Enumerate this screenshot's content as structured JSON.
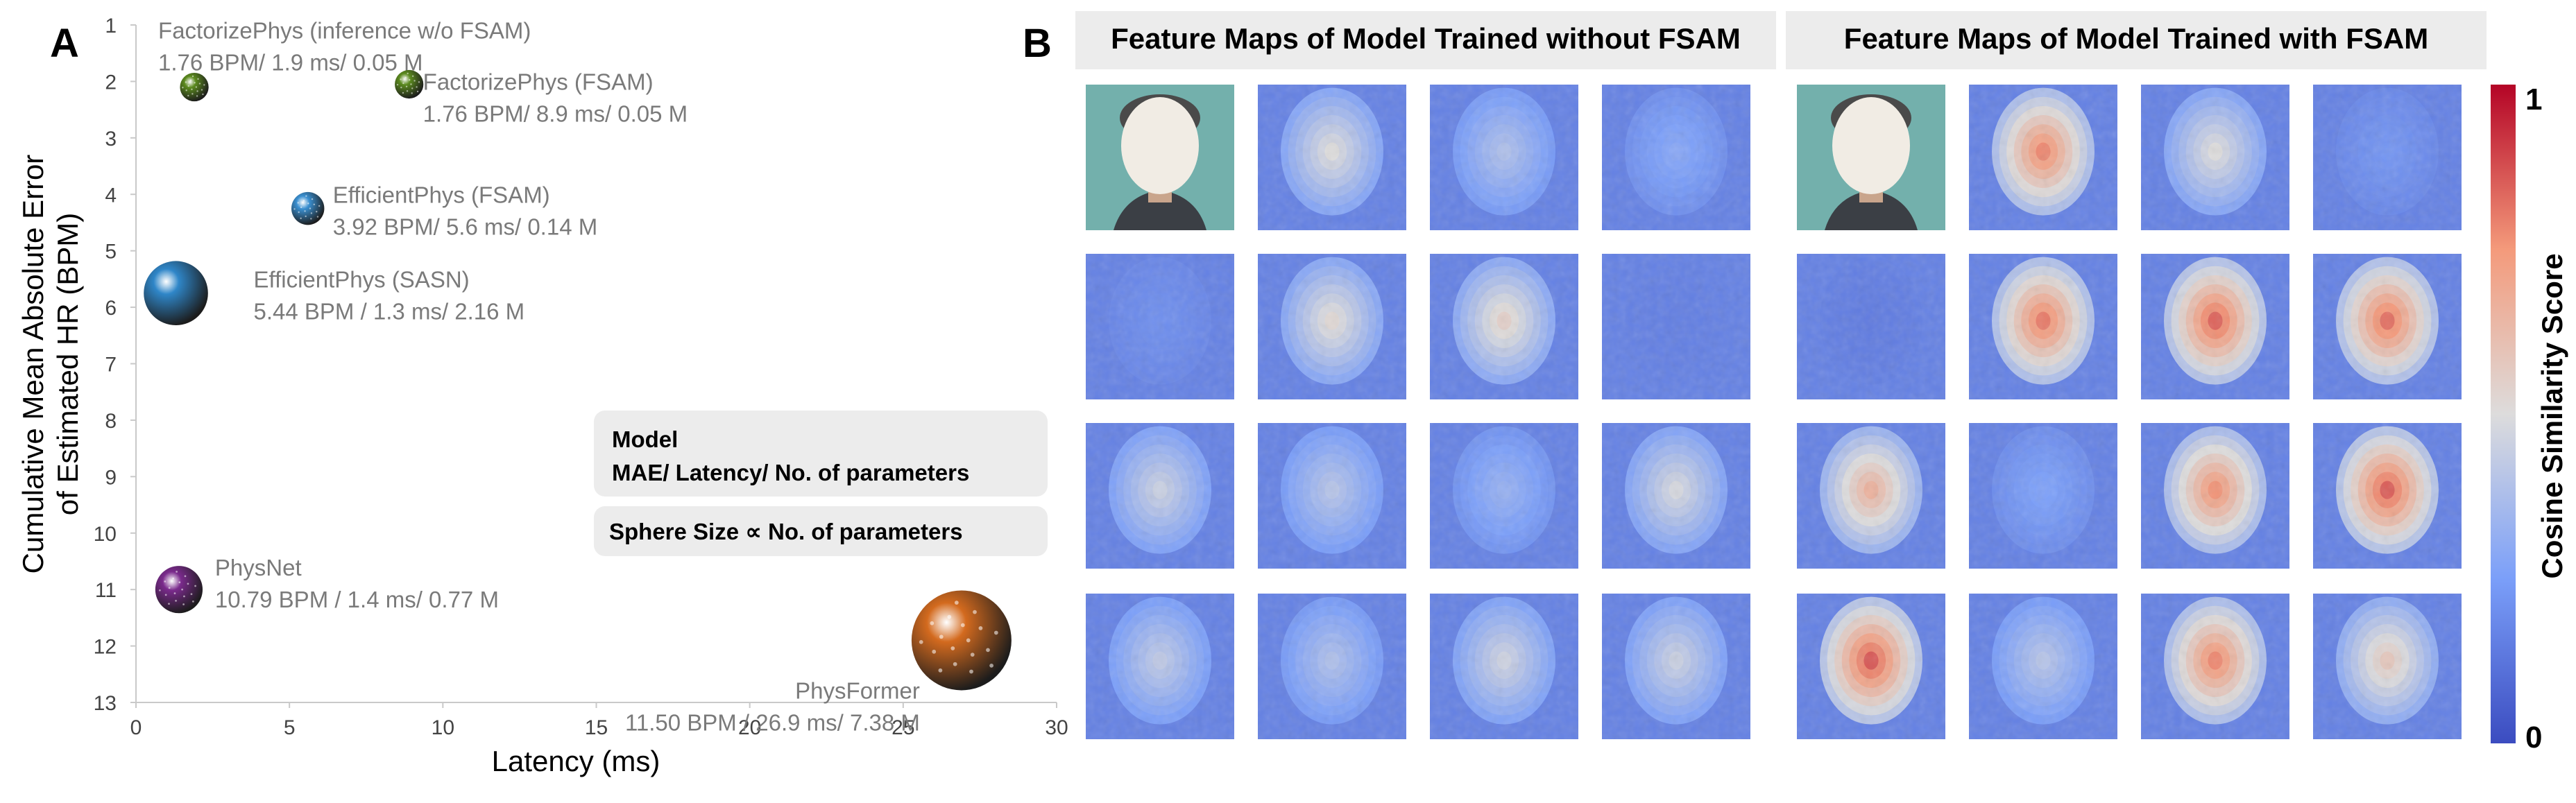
{
  "panels": {
    "a_letter": "A",
    "b_letter": "B"
  },
  "chart_data": [
    {
      "type": "scatter",
      "xlabel": "Latency (ms)",
      "ylabel_lines": [
        "Cumulative Mean Absolute Error",
        "of Estimated HR (BPM)"
      ],
      "xlim": [
        0,
        30
      ],
      "ylim": [
        1,
        13
      ],
      "y_inverted": true,
      "xticks": [
        0,
        5,
        10,
        15,
        20,
        25,
        30
      ],
      "yticks": [
        1,
        2,
        3,
        4,
        5,
        6,
        7,
        8,
        9,
        10,
        11,
        12,
        13
      ],
      "grid": false,
      "legend_box": {
        "line1": "Model",
        "line2": "MAE/ Latency/ No. of parameters",
        "line3": "Sphere Size ∝ No. of parameters"
      },
      "points": [
        {
          "name": "FactorizePhys (inference w/o FSAM)",
          "stats": "1.76 BPM/ 1.9 ms/ 0.05 M",
          "x": 1.9,
          "y": 2.1,
          "params_m": 0.05,
          "color": "#5b8a1e"
        },
        {
          "name": "FactorizePhys (FSAM)",
          "stats": "1.76 BPM/ 8.9 ms/ 0.05 M",
          "x": 8.9,
          "y": 2.05,
          "params_m": 0.05,
          "color": "#5b8a1e"
        },
        {
          "name": "EfficientPhys (FSAM)",
          "stats": "3.92 BPM/ 5.6 ms/ 0.14 M",
          "x": 5.6,
          "y": 4.25,
          "params_m": 0.14,
          "color": "#3a8fd0"
        },
        {
          "name": "EfficientPhys (SASN)",
          "stats": "5.44 BPM / 1.3 ms/ 2.16 M",
          "x": 1.3,
          "y": 5.75,
          "params_m": 2.16,
          "color": "#2f86c8"
        },
        {
          "name": "PhysNet",
          "stats": "10.79 BPM / 1.4 ms/ 0.77 M",
          "x": 1.4,
          "y": 11.0,
          "params_m": 0.77,
          "color": "#7a2a8c"
        },
        {
          "name": "PhysFormer",
          "stats": "11.50 BPM / 26.9 ms/ 7.38 M",
          "x": 26.9,
          "y": 11.9,
          "params_m": 7.38,
          "color": "#d36a1e"
        }
      ]
    },
    {
      "type": "heatmap",
      "banners": [
        "Feature Maps of Model Trained without FSAM",
        "Feature Maps of Model Trained with FSAM"
      ],
      "colorbar": {
        "label": "Cosine Similarity Score",
        "min_label": "0",
        "max_label": "1",
        "range": [
          0,
          1
        ]
      },
      "grid_rows": 4,
      "grid_cols_per_group": 4,
      "first_cell_is_face_photo": true,
      "maps_without_fsam": [
        [
          null,
          0.5,
          0.38,
          0.28
        ],
        [
          0.2,
          0.52,
          0.55,
          0.15
        ],
        [
          0.45,
          0.4,
          0.32,
          0.48
        ],
        [
          0.42,
          0.38,
          0.46,
          0.45
        ]
      ],
      "maps_with_fsam": [
        [
          null,
          0.78,
          0.5,
          0.22
        ],
        [
          0.14,
          0.8,
          0.84,
          0.82
        ],
        [
          0.66,
          0.26,
          0.76,
          0.85
        ],
        [
          0.86,
          0.4,
          0.78,
          0.58
        ]
      ]
    }
  ]
}
